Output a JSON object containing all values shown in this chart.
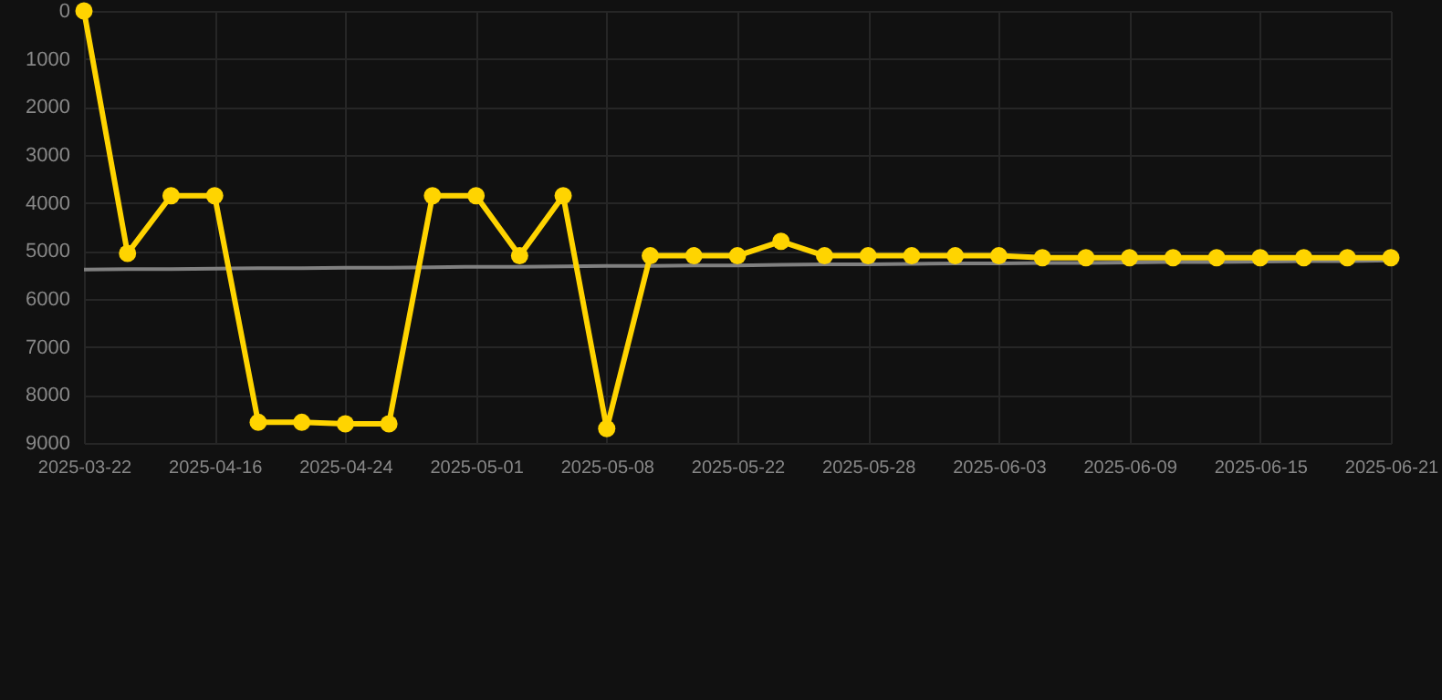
{
  "chart_data": {
    "type": "line",
    "categories": [
      "2025-03-22",
      null,
      null,
      "2025-04-16",
      null,
      null,
      "2025-04-24",
      null,
      null,
      "2025-05-01",
      null,
      null,
      "2025-05-08",
      null,
      null,
      "2025-05-22",
      null,
      null,
      "2025-05-28",
      null,
      null,
      "2025-06-03",
      null,
      null,
      "2025-06-09",
      null,
      null,
      "2025-06-15",
      null,
      null,
      "2025-06-21"
    ],
    "series": [
      {
        "color": "#808080",
        "marker": "none",
        "values": [
          5390,
          5380,
          5380,
          5370,
          5360,
          5360,
          5350,
          5350,
          5340,
          5330,
          5330,
          5320,
          5310,
          5310,
          5300,
          5300,
          5290,
          5280,
          5280,
          5270,
          5260,
          5260,
          5250,
          5250,
          5240,
          5230,
          5230,
          5220,
          5210,
          5210,
          5200
        ]
      },
      {
        "color": "#ffd400",
        "marker": "circle",
        "values": [
          0,
          5050,
          3850,
          3850,
          8570,
          8570,
          8600,
          8600,
          3850,
          3850,
          5100,
          3850,
          8700,
          5100,
          5100,
          5100,
          4800,
          5100,
          5100,
          5100,
          5100,
          5100,
          5140,
          5140,
          5140,
          5140,
          5140,
          5140,
          5140,
          5140,
          5140
        ]
      }
    ],
    "ylim": [
      9000,
      0
    ],
    "yticks": [
      0,
      1000,
      2000,
      3000,
      4000,
      5000,
      6000,
      7000,
      8000,
      9000
    ],
    "grid": true,
    "line_style": "solid"
  }
}
